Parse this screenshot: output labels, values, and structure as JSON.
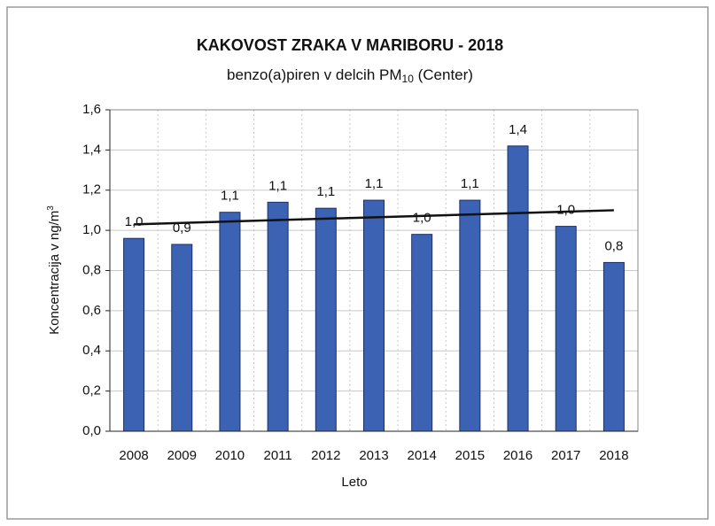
{
  "chart_data": {
    "type": "bar",
    "title": "KAKOVOST ZRAKA V MARIBORU - 2018",
    "subtitle": [
      "benzo(a)piren v delcih PM",
      "10",
      " (Center)"
    ],
    "y_label": [
      "Koncentracija v ng/m",
      "3"
    ],
    "x_label": "Leto",
    "categories": [
      "2008",
      "2009",
      "2010",
      "2011",
      "2012",
      "2013",
      "2014",
      "2015",
      "2016",
      "2017",
      "2018"
    ],
    "values": [
      0.96,
      0.93,
      1.09,
      1.14,
      1.11,
      1.15,
      0.98,
      1.15,
      1.42,
      1.02,
      0.84
    ],
    "value_labels": [
      "1,0",
      "0,9",
      "1,1",
      "1,1",
      "1,1",
      "1,1",
      "1,0",
      "1,1",
      "1,4",
      "1,0",
      "0,8"
    ],
    "color": "#3c63b3",
    "trendline": [
      1.03,
      1.1
    ],
    "trendline_color": "#111111",
    "ylim": [
      0,
      1.6
    ],
    "yticks": [
      {
        "value": 0,
        "label": "0,0"
      },
      {
        "value": 0.2,
        "label": "0,2"
      },
      {
        "value": 0.4,
        "label": "0,4"
      },
      {
        "value": 0.6,
        "label": "0,6"
      },
      {
        "value": 0.8,
        "label": "0,8"
      },
      {
        "value": 1.0,
        "label": "1,0"
      },
      {
        "value": 1.2,
        "label": "1,2"
      },
      {
        "value": 1.4,
        "label": "1,4"
      },
      {
        "value": 1.6,
        "label": "1,6"
      }
    ],
    "grid": true
  }
}
